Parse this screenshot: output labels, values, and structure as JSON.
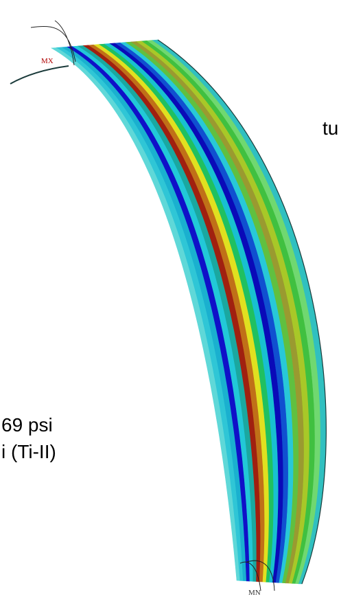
{
  "labels": {
    "top_right": "tu",
    "left_line1": "69 psi",
    "left_line2": "i (Ti-II)",
    "max_marker": "MX",
    "min_marker": "MN"
  }
}
